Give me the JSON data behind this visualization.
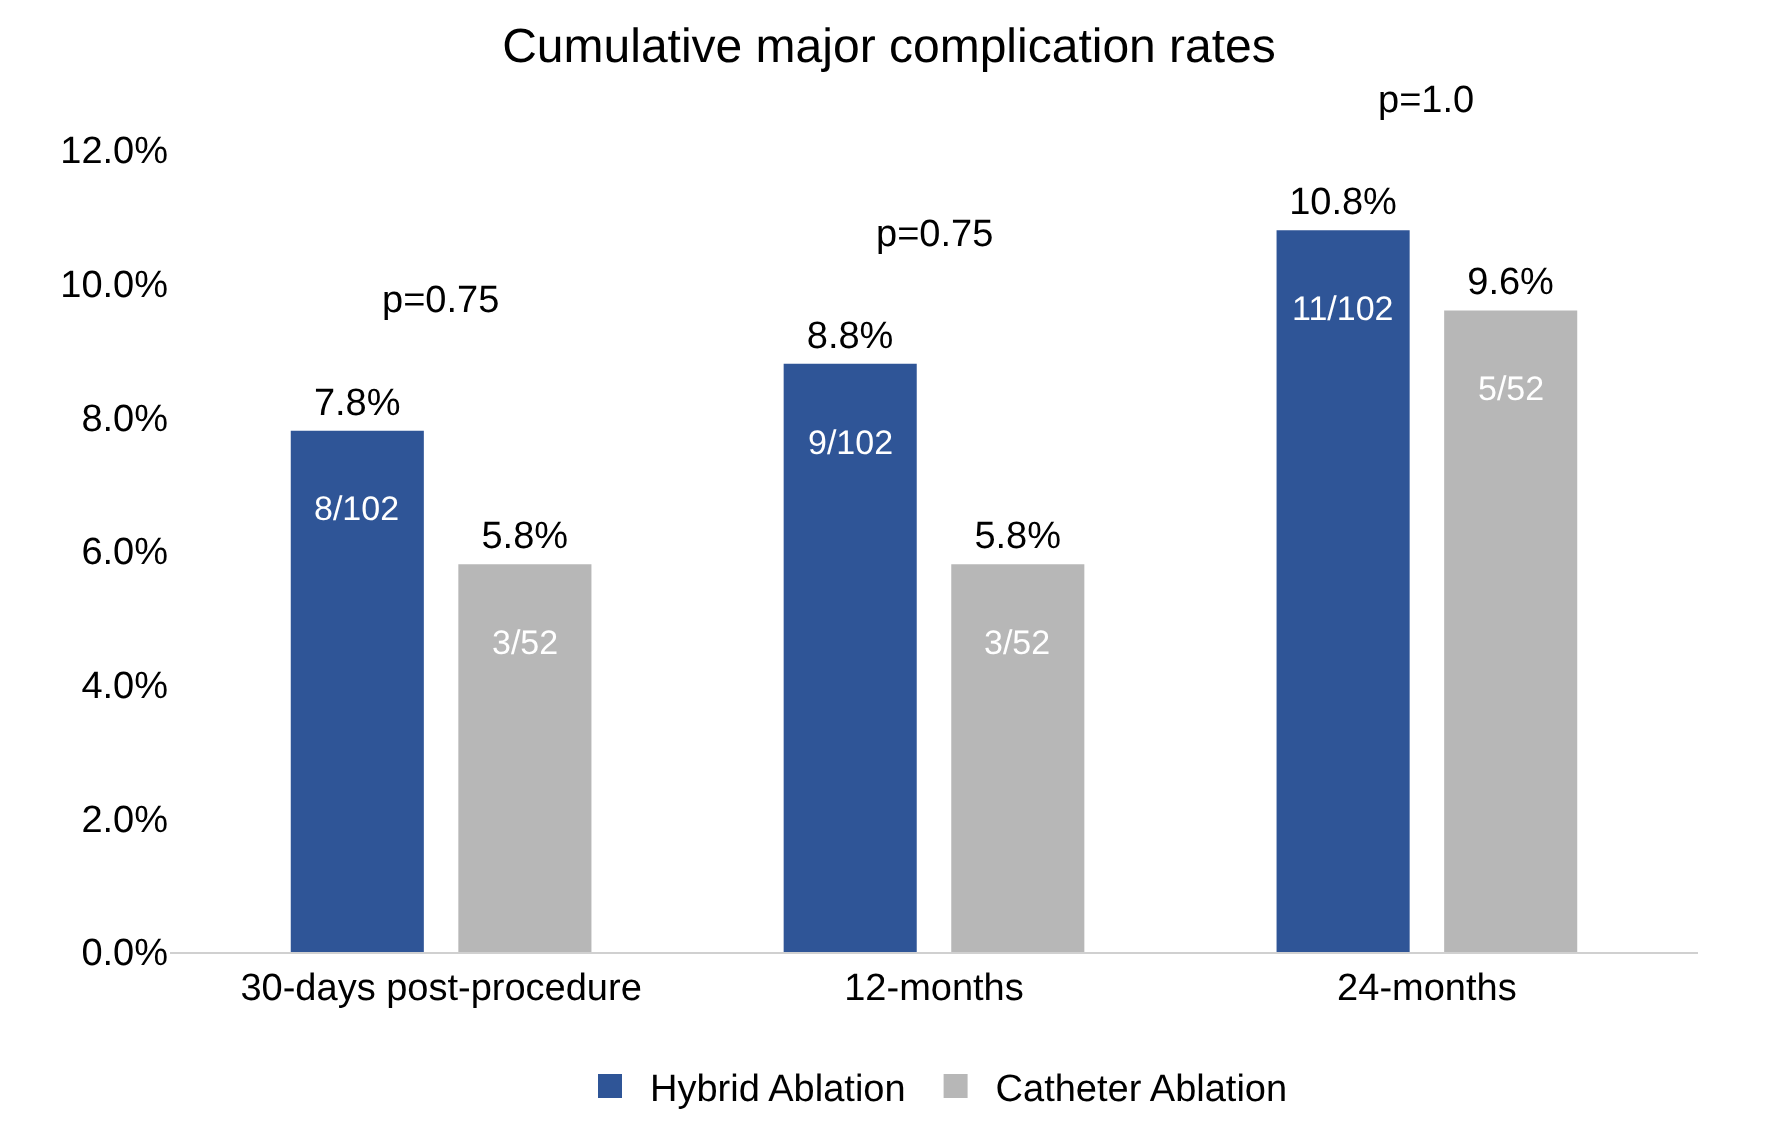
{
  "chart_data": {
    "type": "bar",
    "title": "Cumulative major complication rates",
    "categories": [
      "30-days post-procedure",
      "12-months",
      "24-months"
    ],
    "series": [
      {
        "name": "Hybrid Ablation",
        "color": "#2f5597",
        "values": [
          7.8,
          8.8,
          10.8
        ],
        "value_labels": [
          "7.8%",
          "8.8%",
          "10.8%"
        ]
      },
      {
        "name": "Catheter Ablation",
        "color": "#b7b7b7",
        "values": [
          5.8,
          5.8,
          9.6
        ],
        "value_labels": [
          "5.8%",
          "5.8%",
          "9.6%"
        ]
      }
    ],
    "ylim": [
      0,
      12
    ],
    "yticks": [
      {
        "value": 0,
        "label": "0.0%"
      },
      {
        "value": 2,
        "label": "2.0%"
      },
      {
        "value": 4,
        "label": "4.0%"
      },
      {
        "value": 6,
        "label": "6.0%"
      },
      {
        "value": 8,
        "label": "8.0%"
      },
      {
        "value": 10,
        "label": "10.0%"
      },
      {
        "value": 12,
        "label": "12.0%"
      }
    ],
    "annotations": [
      "p=0.75",
      "p=0.75",
      "p=1.0",
      "8/102",
      "3/52",
      "9/102",
      "3/52",
      "11/102",
      "5/52"
    ],
    "legend": "bottom"
  }
}
